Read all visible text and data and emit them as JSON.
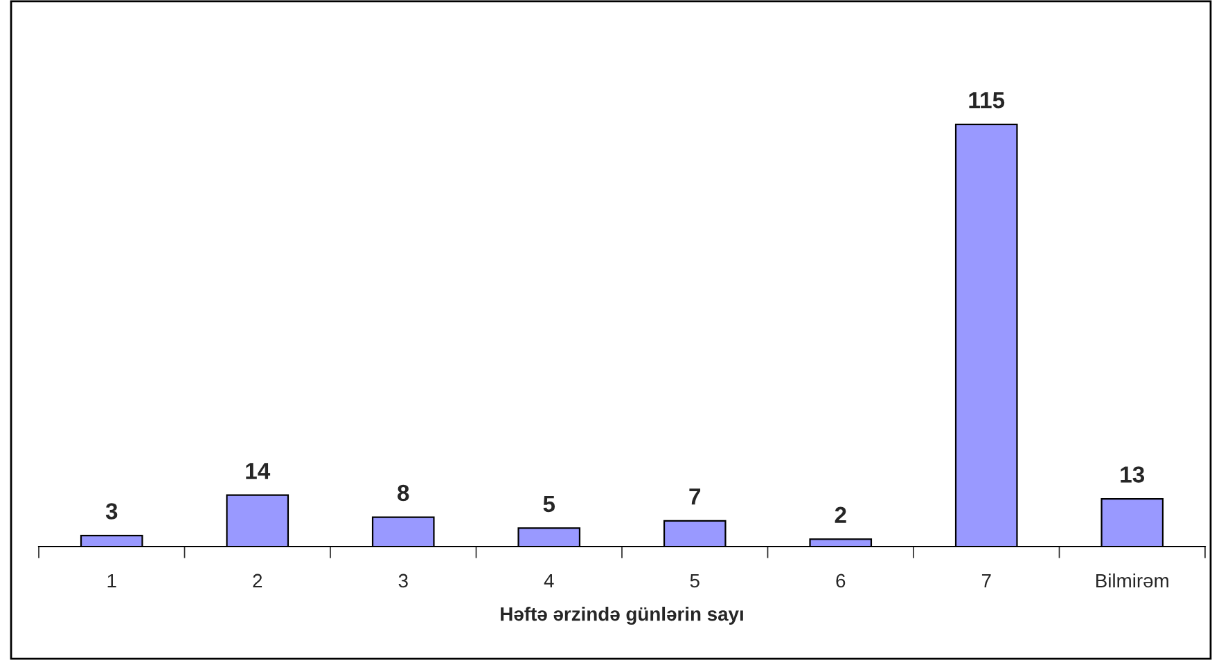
{
  "chart_data": {
    "type": "bar",
    "xlabel": "Həftə ərzində günlərin sayı",
    "categories": [
      "1",
      "2",
      "3",
      "4",
      "5",
      "6",
      "7",
      "Bilmirəm"
    ],
    "values": [
      3,
      14,
      8,
      5,
      7,
      2,
      115,
      13
    ],
    "color": "#9999ff",
    "data_labels": true,
    "grid": false,
    "legend": false
  }
}
